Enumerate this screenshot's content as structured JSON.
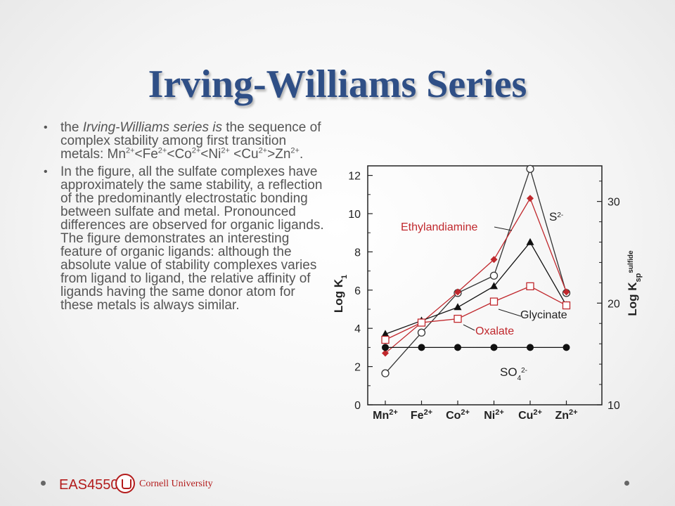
{
  "title": "Irving-Williams Series",
  "bullets": {
    "b1": {
      "em1": "the ",
      "ital": "Irving-Williams series is",
      "t2": " the sequence of complex stability among first transition metals: ",
      "ions": [
        {
          "el": "Mn",
          "ch": "2+",
          "sep": "<"
        },
        {
          "el": "Fe",
          "ch": "2+",
          "sep": "<"
        },
        {
          "el": "Co",
          "ch": "2+",
          "sep": "<"
        },
        {
          "el": "Ni",
          "ch": "2+",
          "sep": " <"
        },
        {
          "el": "Cu",
          "ch": "2+",
          "sep": ">"
        },
        {
          "el": "Zn",
          "ch": "2+",
          "sep": "."
        }
      ]
    },
    "b2": "In the figure, all the sulfate complexes have approximately the same stability, a reflection of the predominantly electrostatic bonding between sulfate and metal. Pronounced differences are observed for organic ligands. The figure demonstrates an interesting feature of organic ligands: although the absolute value of stability complexes varies from ligand to ligand, the relative affinity of ligands having the same donor atom for these metals is always similar."
  },
  "footer": {
    "course": "EAS4550",
    "university": "Cornell University"
  },
  "chart_data": {
    "type": "line",
    "categories": [
      "Mn2+",
      "Fe2+",
      "Co2+",
      "Ni2+",
      "Cu2+",
      "Zn2+"
    ],
    "category_labels": [
      {
        "el": "Mn",
        "ch": "2+"
      },
      {
        "el": "Fe",
        "ch": "2+"
      },
      {
        "el": "Co",
        "ch": "2+"
      },
      {
        "el": "Ni",
        "ch": "2+"
      },
      {
        "el": "Cu",
        "ch": "2+"
      },
      {
        "el": "Zn",
        "ch": "2+"
      }
    ],
    "ylabel_left": {
      "main": "Log K",
      "sub": "1"
    },
    "ylabel_right": {
      "main": "Log K",
      "sub": "sp",
      "sup": "sulfide"
    },
    "ylim": [
      0,
      12.5
    ],
    "yticks_left": [
      0,
      2,
      4,
      6,
      8,
      10,
      12
    ],
    "ylim_right": [
      10,
      33.5
    ],
    "yticks_right": [
      10,
      20,
      30
    ],
    "grid": false,
    "series": [
      {
        "name": "S2-",
        "label_main": "S",
        "label_sup": "2-",
        "axis": "right",
        "marker": "open-circle",
        "color": "#333333",
        "values": [
          13.1,
          17.1,
          21.0,
          22.7,
          33.2,
          21.0
        ]
      },
      {
        "name": "Ethylandiamine",
        "axis": "left",
        "marker": "filled-diamond",
        "color": "#c0282d",
        "values": [
          2.7,
          4.3,
          5.9,
          7.6,
          10.8,
          5.9
        ]
      },
      {
        "name": "Glycinate",
        "axis": "left",
        "marker": "filled-triangle",
        "color": "#111111",
        "values": [
          3.7,
          4.4,
          5.1,
          6.2,
          8.5,
          5.2
        ]
      },
      {
        "name": "Oxalate",
        "axis": "left",
        "marker": "open-square",
        "color": "#c0282d",
        "values": [
          3.4,
          4.3,
          4.5,
          5.4,
          6.2,
          5.2
        ]
      },
      {
        "name": "SO42-",
        "label_main": "SO",
        "label_sub": "4",
        "label_sup": "2-",
        "axis": "left",
        "marker": "filled-circle",
        "color": "#111111",
        "values": [
          3.0,
          3.0,
          3.0,
          3.0,
          3.0,
          3.0
        ]
      }
    ]
  }
}
